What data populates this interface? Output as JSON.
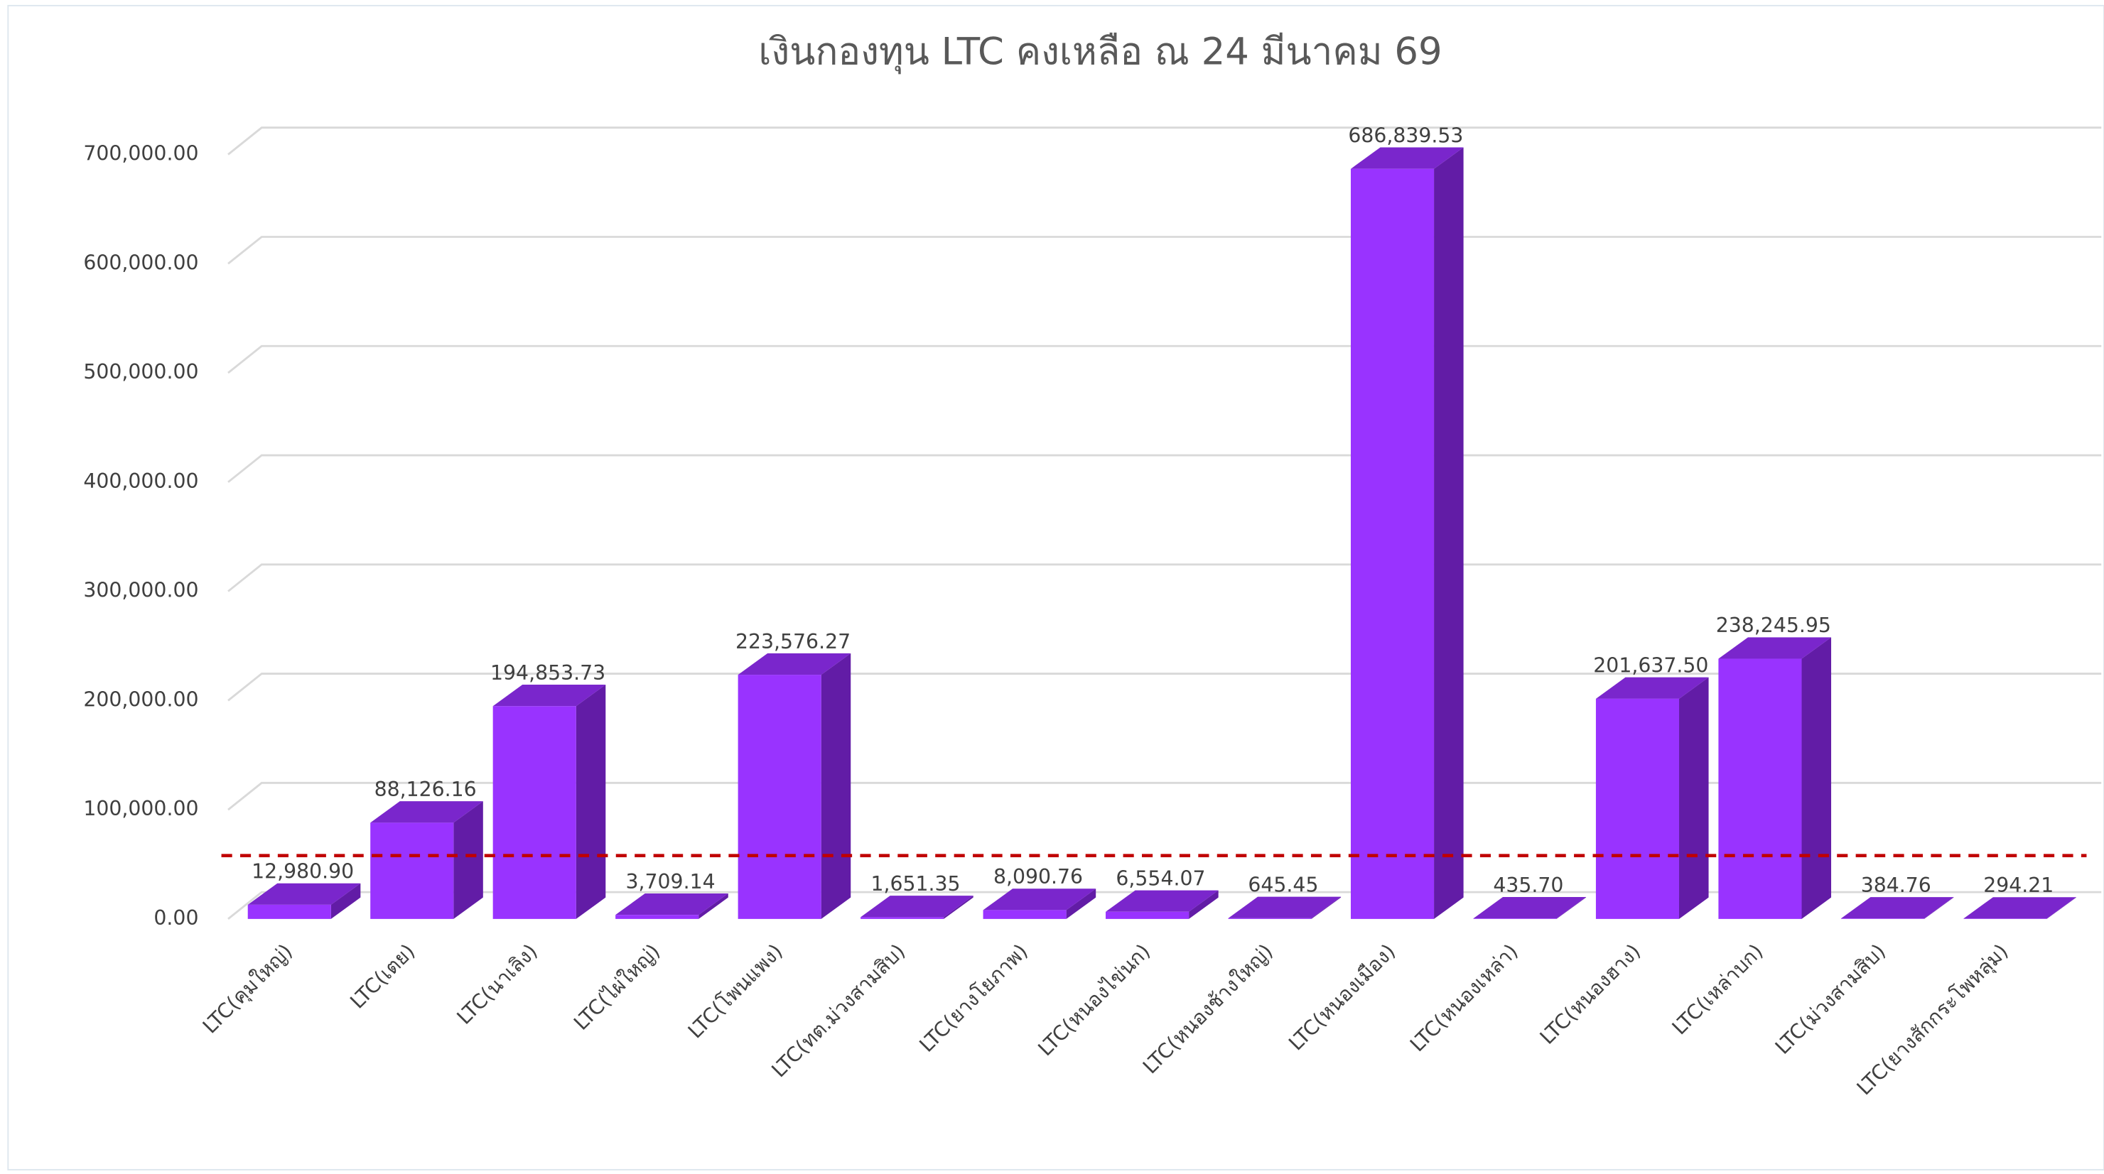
{
  "chart_data": {
    "type": "bar3d",
    "title": "เงินกองทุน LTC คงเหลือ ณ 24 มีนาคม 69",
    "categories": [
      "LTC(คุมใหญ่)",
      "LTC(เตย)",
      "LTC(นาเลิง)",
      "LTC(ไผ่ใหญ่)",
      "LTC(โพนแพง)",
      "LTC(ทต.ม่วงสามสิบ)",
      "LTC(ยางโยภาพ)",
      "LTC(หนองไข่นก)",
      "LTC(หนองช้างใหญ่)",
      "LTC(หนองเมือง)",
      "LTC(หนองเหล่า)",
      "LTC(หนองฮาง)",
      "LTC(เหล่าบก)",
      "LTC(ม่วงสามสิบ)",
      "LTC(ยางสักกระโพหลุ่ม)"
    ],
    "values": [
      12980.9,
      88126.16,
      194853.73,
      3709.14,
      223576.27,
      1651.35,
      8090.76,
      6554.07,
      645.45,
      686839.53,
      435.7,
      201637.5,
      238245.95,
      384.76,
      294.21
    ],
    "value_labels": [
      "12,980.90",
      "88,126.16",
      "194,853.73",
      "3,709.14",
      "223,576.27",
      "1,651.35",
      "8,090.76",
      "6,554.07",
      "645.45",
      "686,839.53",
      "435.70",
      "201,637.50",
      "238,245.95",
      "384.76",
      "294.21"
    ],
    "color": "#9933ff",
    "ylim": [
      0,
      700000
    ],
    "yticks": [
      {
        "value": 0,
        "label": "0.00"
      },
      {
        "value": 100000,
        "label": "100,000.00"
      },
      {
        "value": 200000,
        "label": "200,000.00"
      },
      {
        "value": 300000,
        "label": "300,000.00"
      },
      {
        "value": 400000,
        "label": "400,000.00"
      },
      {
        "value": 500000,
        "label": "500,000.00"
      },
      {
        "value": 600000,
        "label": "600,000.00"
      },
      {
        "value": 700000,
        "label": "700,000.00"
      }
    ],
    "grid": true,
    "reference_line": {
      "value": 58000,
      "color": "#c00000"
    }
  }
}
